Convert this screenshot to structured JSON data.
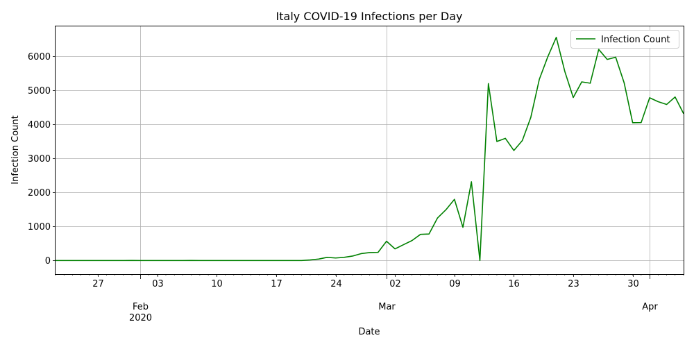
{
  "chart_data": {
    "type": "line",
    "title": "Italy COVID-19 Infections per Day",
    "xlabel": "Date",
    "ylabel": "Infection Count",
    "x_start": "2020-01-22",
    "x_end": "2020-04-05",
    "ylim": [
      -400,
      6880
    ],
    "grid": true,
    "legend_position": "top-right",
    "series": [
      {
        "name": "Infection Count",
        "color": "#008000",
        "dates": [
          "2020-01-22",
          "2020-01-23",
          "2020-01-24",
          "2020-01-25",
          "2020-01-26",
          "2020-01-27",
          "2020-01-28",
          "2020-01-29",
          "2020-01-30",
          "2020-01-31",
          "2020-02-01",
          "2020-02-02",
          "2020-02-03",
          "2020-02-04",
          "2020-02-05",
          "2020-02-06",
          "2020-02-07",
          "2020-02-08",
          "2020-02-09",
          "2020-02-10",
          "2020-02-11",
          "2020-02-12",
          "2020-02-13",
          "2020-02-14",
          "2020-02-15",
          "2020-02-16",
          "2020-02-17",
          "2020-02-18",
          "2020-02-19",
          "2020-02-20",
          "2020-02-21",
          "2020-02-22",
          "2020-02-23",
          "2020-02-24",
          "2020-02-25",
          "2020-02-26",
          "2020-02-27",
          "2020-02-28",
          "2020-02-29",
          "2020-03-01",
          "2020-03-02",
          "2020-03-03",
          "2020-03-04",
          "2020-03-05",
          "2020-03-06",
          "2020-03-07",
          "2020-03-08",
          "2020-03-09",
          "2020-03-10",
          "2020-03-11",
          "2020-03-12",
          "2020-03-13",
          "2020-03-14",
          "2020-03-15",
          "2020-03-16",
          "2020-03-17",
          "2020-03-18",
          "2020-03-19",
          "2020-03-20",
          "2020-03-21",
          "2020-03-22",
          "2020-03-23",
          "2020-03-24",
          "2020-03-25",
          "2020-03-26",
          "2020-03-27",
          "2020-03-28",
          "2020-03-29",
          "2020-03-30",
          "2020-03-31",
          "2020-04-01",
          "2020-04-02",
          "2020-04-03",
          "2020-04-04",
          "2020-04-05"
        ],
        "values": [
          0,
          0,
          0,
          0,
          0,
          0,
          0,
          0,
          0,
          2,
          0,
          0,
          0,
          0,
          0,
          0,
          1,
          0,
          0,
          0,
          0,
          0,
          0,
          0,
          0,
          0,
          0,
          0,
          0,
          0,
          17,
          42,
          93,
          74,
          93,
          131,
          202,
          233,
          240,
          566,
          342,
          466,
          587,
          769,
          778,
          1247,
          1492,
          1797,
          977,
          2313,
          0,
          5198,
          3497,
          3590,
          3233,
          3526,
          4207,
          5322,
          5986,
          6557,
          5560,
          4789,
          5249,
          5210,
          6203,
          5909,
          5974,
          5217,
          4050,
          4053,
          4782,
          4668,
          4585,
          4805,
          4316
        ]
      }
    ],
    "y_ticks": [
      0,
      1000,
      2000,
      3000,
      4000,
      5000,
      6000
    ],
    "x_ticks": [
      {
        "date": "2020-01-27",
        "label": "27"
      },
      {
        "date": "2020-02-03",
        "label": "03"
      },
      {
        "date": "2020-02-10",
        "label": "10"
      },
      {
        "date": "2020-02-17",
        "label": "17"
      },
      {
        "date": "2020-02-24",
        "label": "24"
      },
      {
        "date": "2020-03-02",
        "label": "02"
      },
      {
        "date": "2020-03-09",
        "label": "09"
      },
      {
        "date": "2020-03-16",
        "label": "16"
      },
      {
        "date": "2020-03-23",
        "label": "23"
      },
      {
        "date": "2020-03-30",
        "label": "30"
      }
    ],
    "month_ticks": [
      {
        "date": "2020-02-01",
        "label": "Feb",
        "sublabel": "2020"
      },
      {
        "date": "2020-03-01",
        "label": "Mar",
        "sublabel": ""
      },
      {
        "date": "2020-04-01",
        "label": "Apr",
        "sublabel": ""
      }
    ]
  }
}
